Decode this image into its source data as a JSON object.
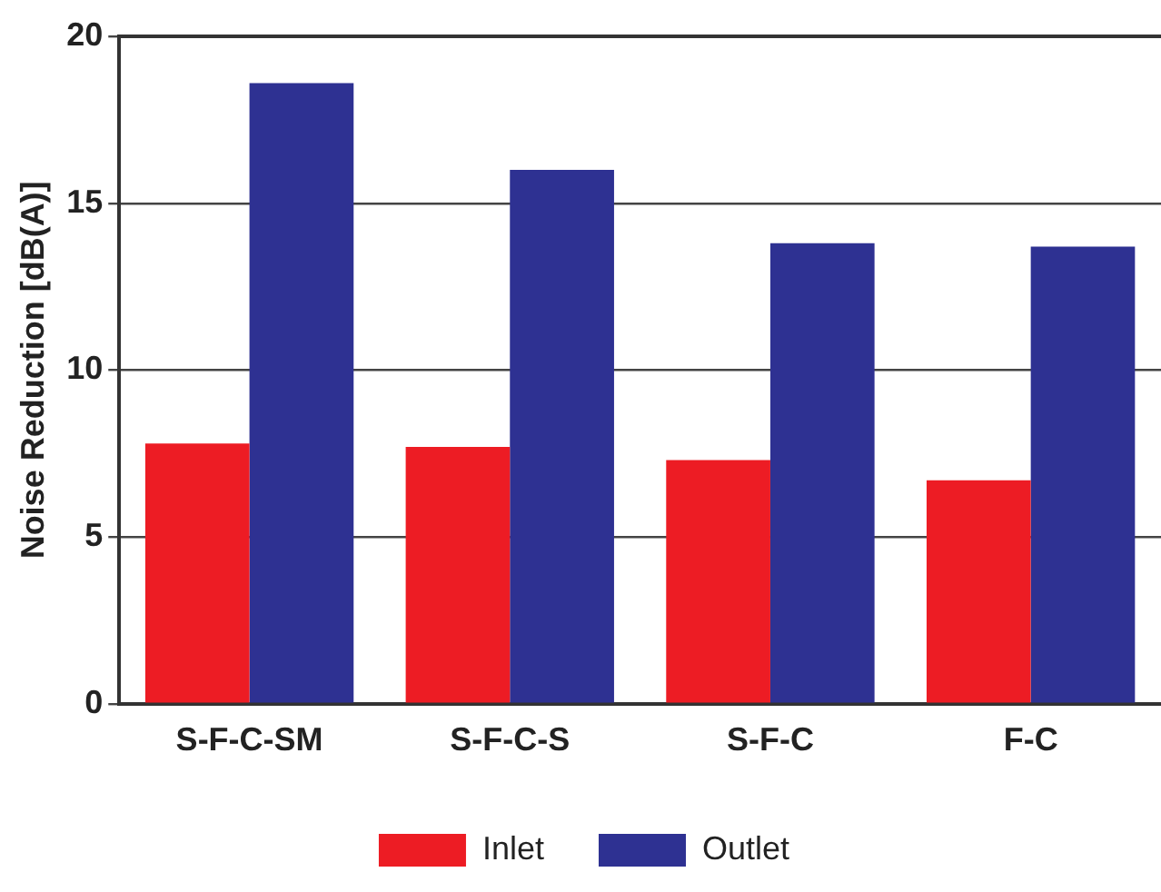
{
  "chart_data": {
    "type": "bar",
    "ylabel": "Noise Reduction [dB(A)]",
    "categories": [
      "S-F-C-SM",
      "S-F-C-S",
      "S-F-C",
      "F-C"
    ],
    "series": [
      {
        "name": "Inlet",
        "color": "#ed1c24",
        "values": [
          7.8,
          7.7,
          7.3,
          6.7
        ]
      },
      {
        "name": "Outlet",
        "color": "#2e3192",
        "values": [
          18.6,
          16.0,
          13.8,
          13.7
        ]
      }
    ],
    "ylim": [
      0,
      20
    ],
    "yticks": [
      0,
      5,
      10,
      15,
      20
    ],
    "grid": "y",
    "legend": "bottom"
  }
}
